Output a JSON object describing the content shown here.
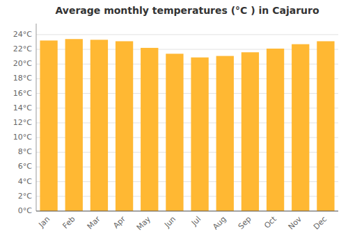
{
  "chart_data": {
    "type": "bar",
    "title": "Average monthly temperatures (°C ) in Cajaruro",
    "categories": [
      "Jan",
      "Feb",
      "Mar",
      "Apr",
      "May",
      "Jun",
      "Jul",
      "Aug",
      "Sep",
      "Oct",
      "Nov",
      "Dec"
    ],
    "values": [
      23.2,
      23.4,
      23.3,
      23.1,
      22.2,
      21.4,
      20.9,
      21.1,
      21.6,
      22.1,
      22.7,
      23.1
    ],
    "color": "#FFB833",
    "ylim": [
      0,
      25.5
    ],
    "yticks": [
      {
        "value": 0,
        "label": "0°C"
      },
      {
        "value": 2,
        "label": "2°C"
      },
      {
        "value": 4,
        "label": "4°C"
      },
      {
        "value": 6,
        "label": "6°C"
      },
      {
        "value": 8,
        "label": "8°C"
      },
      {
        "value": 10,
        "label": "10°C"
      },
      {
        "value": 12,
        "label": "12°C"
      },
      {
        "value": 14,
        "label": "14°C"
      },
      {
        "value": 16,
        "label": "16°C"
      },
      {
        "value": 18,
        "label": "18°C"
      },
      {
        "value": 20,
        "label": "20°C"
      },
      {
        "value": 22,
        "label": "22°C"
      },
      {
        "value": 24,
        "label": "24°C"
      }
    ],
    "grid": true
  }
}
